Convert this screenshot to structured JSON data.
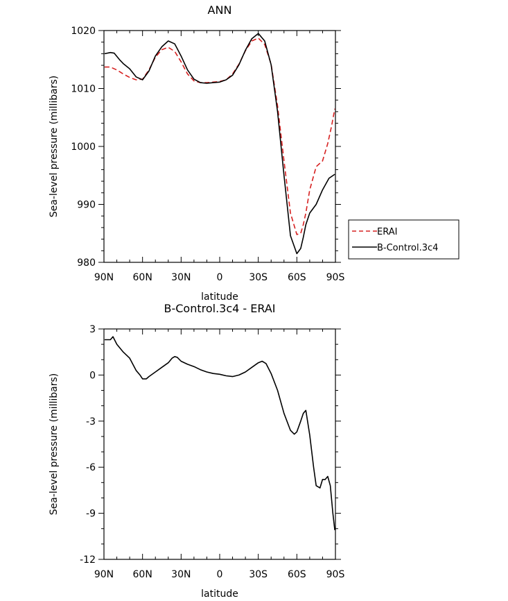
{
  "chart_data": [
    {
      "type": "line",
      "title": "ANN",
      "xlabel": "latitude",
      "ylabel": "Sea-level pressure (millibars)",
      "xlim": [
        90,
        -90
      ],
      "ylim": [
        980,
        1020
      ],
      "x_ticks": [
        90,
        60,
        30,
        0,
        -30,
        -60,
        -90
      ],
      "x_tick_labels": [
        "90N",
        "60N",
        "30N",
        "0",
        "30S",
        "60S",
        "90S"
      ],
      "y_ticks": [
        980,
        990,
        1000,
        1010,
        1020
      ],
      "y_tick_labels": [
        "980",
        "990",
        "1000",
        "1010",
        "1020"
      ],
      "legend": [
        "ERAI",
        "B-Control.3c4"
      ],
      "series": [
        {
          "name": "ERAI",
          "color": "#d62020",
          "dash": "dashed",
          "x": [
            89.5,
            85,
            80,
            75,
            70,
            65,
            60,
            55,
            50,
            45,
            40,
            35,
            30,
            25,
            20,
            15,
            10,
            5,
            0,
            -5,
            -10,
            -15,
            -20,
            -25,
            -30,
            -35,
            -40,
            -45,
            -50,
            -55,
            -60,
            -63,
            -65,
            -67,
            -70,
            -75,
            -80,
            -84,
            -87,
            -89.5
          ],
          "y": [
            1013.7,
            1013.7,
            1013.2,
            1012.5,
            1011.9,
            1011.5,
            1011.6,
            1013.2,
            1015.4,
            1016.7,
            1017.1,
            1016.4,
            1014.6,
            1012.5,
            1011.3,
            1011.0,
            1011.0,
            1011.1,
            1011.2,
            1011.5,
            1012.5,
            1014.2,
            1016.5,
            1018.2,
            1018.7,
            1017.6,
            1014.2,
            1007.0,
            997.5,
            988.5,
            984.8,
            985.0,
            986.5,
            988.5,
            992.5,
            996.5,
            997.5,
            1000.5,
            1003.5,
            1006.5
          ]
        },
        {
          "name": "B-Control.3c4",
          "color": "#000000",
          "dash": "solid",
          "x": [
            89.5,
            85,
            82,
            78,
            75,
            70,
            65,
            60,
            55,
            50,
            45,
            40,
            35,
            30,
            25,
            20,
            15,
            10,
            5,
            0,
            -5,
            -10,
            -15,
            -20,
            -25,
            -30,
            -35,
            -40,
            -45,
            -50,
            -55,
            -60,
            -63,
            -65,
            -67,
            -70,
            -75,
            -80,
            -85,
            -89.5
          ],
          "y": [
            1016.0,
            1016.2,
            1016.1,
            1015.0,
            1014.3,
            1013.4,
            1012.0,
            1011.5,
            1013.0,
            1015.6,
            1017.2,
            1018.2,
            1017.7,
            1015.6,
            1013.2,
            1011.6,
            1011.0,
            1010.9,
            1011.0,
            1011.1,
            1011.5,
            1012.3,
            1014.1,
            1016.6,
            1018.6,
            1019.5,
            1018.2,
            1014.1,
            1006.0,
            995.0,
            984.6,
            981.5,
            982.4,
            984.3,
            986.5,
            988.5,
            990.0,
            992.5,
            994.5,
            995.2
          ]
        }
      ]
    },
    {
      "type": "line",
      "title": "B-Control.3c4 - ERAI",
      "xlabel": "latitude",
      "ylabel": "Sea-level pressure (millibars)",
      "xlim": [
        90,
        -90
      ],
      "ylim": [
        -12,
        3
      ],
      "x_ticks": [
        90,
        60,
        30,
        0,
        -30,
        -60,
        -90
      ],
      "x_tick_labels": [
        "90N",
        "60N",
        "30N",
        "0",
        "30S",
        "60S",
        "90S"
      ],
      "y_ticks": [
        -12,
        -9,
        -6,
        -3,
        0,
        3
      ],
      "y_tick_labels": [
        "-12",
        "-9",
        "-6",
        "-3",
        "0",
        "3"
      ],
      "series": [
        {
          "name": "B-Control.3c4 - ERAI",
          "color": "#000000",
          "dash": "solid",
          "x": [
            89.5,
            85,
            83,
            80,
            75,
            70,
            65,
            62,
            60,
            57,
            55,
            50,
            45,
            40,
            37,
            35,
            33,
            30,
            25,
            20,
            15,
            10,
            5,
            0,
            -5,
            -10,
            -15,
            -20,
            -25,
            -30,
            -33,
            -36,
            -40,
            -45,
            -50,
            -55,
            -58,
            -60,
            -63,
            -65,
            -67,
            -70,
            -73,
            -75,
            -78,
            -80,
            -82,
            -84,
            -86,
            -88,
            -89.5
          ],
          "y": [
            2.3,
            2.3,
            2.5,
            2.0,
            1.5,
            1.1,
            0.3,
            0.0,
            -0.25,
            -0.25,
            -0.1,
            0.2,
            0.5,
            0.8,
            1.1,
            1.2,
            1.15,
            0.9,
            0.7,
            0.55,
            0.35,
            0.2,
            0.1,
            0.05,
            -0.05,
            -0.1,
            0.0,
            0.2,
            0.5,
            0.8,
            0.9,
            0.75,
            0.1,
            -1.0,
            -2.5,
            -3.6,
            -3.85,
            -3.7,
            -3.0,
            -2.5,
            -2.3,
            -3.9,
            -6.0,
            -7.2,
            -7.35,
            -6.8,
            -6.8,
            -6.6,
            -7.2,
            -9.0,
            -10.1
          ]
        }
      ]
    }
  ]
}
